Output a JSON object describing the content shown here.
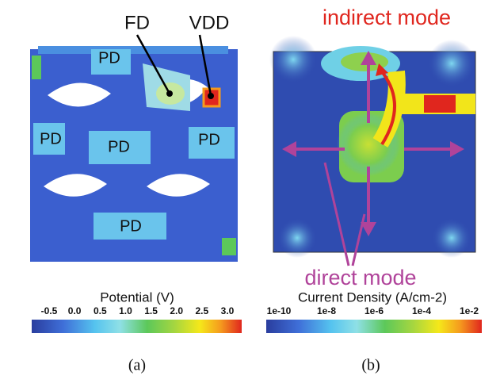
{
  "panels": [
    {
      "labels": [
        "FD",
        "VDD",
        "PD",
        "PD",
        "PD",
        "PD",
        "PD"
      ],
      "colorbar": {
        "title": "Potential (V)",
        "ticks": [
          "-0.5",
          "0.0",
          "0.5",
          "1.0",
          "1.5",
          "2.0",
          "2.5",
          "3.0"
        ]
      },
      "caption": "(a)"
    },
    {
      "annotations": [
        "indirect mode",
        "direct mode"
      ],
      "colorbar": {
        "title": "Current Density (A/cm-2)",
        "ticks": [
          "1e-10",
          "1e-8",
          "1e-6",
          "1e-4",
          "1e-2"
        ]
      },
      "caption": "(b)"
    }
  ]
}
